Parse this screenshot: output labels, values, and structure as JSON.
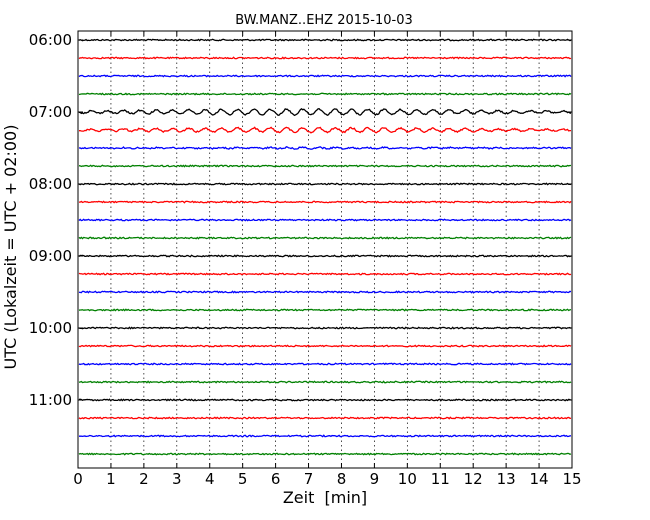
{
  "chart_data": {
    "type": "line",
    "title": "BW.MANZ..EHZ 2015-10-03",
    "xlabel": "Zeit  [min]",
    "ylabel": "UTC (Lokalzeit = UTC + 02:00)",
    "xlim": [
      0,
      15
    ],
    "x_ticks": [
      0,
      1,
      2,
      3,
      4,
      5,
      6,
      7,
      8,
      9,
      10,
      11,
      12,
      13,
      14,
      15
    ],
    "x_tick_labels": [
      "0",
      "1",
      "2",
      "3",
      "4",
      "5",
      "6",
      "7",
      "8",
      "9",
      "10",
      "11",
      "12",
      "13",
      "14",
      "15"
    ],
    "y_tick_labels": [
      "06:00",
      "07:00",
      "08:00",
      "09:00",
      "10:00",
      "11:00"
    ],
    "grid": "vertical dotted",
    "trace_colors": [
      "#000000",
      "#ff0000",
      "#0000ff",
      "#008000"
    ],
    "traces": [
      {
        "start": "06:00",
        "amp": 1.0
      },
      {
        "start": "06:15",
        "amp": 1.0
      },
      {
        "start": "06:30",
        "amp": 1.0
      },
      {
        "start": "06:45",
        "amp": 1.0
      },
      {
        "start": "07:00",
        "amp": 3.5
      },
      {
        "start": "07:15",
        "amp": 3.0
      },
      {
        "start": "07:30",
        "amp": 1.5
      },
      {
        "start": "07:45",
        "amp": 1.0
      },
      {
        "start": "08:00",
        "amp": 1.0
      },
      {
        "start": "08:15",
        "amp": 1.0
      },
      {
        "start": "08:30",
        "amp": 1.0
      },
      {
        "start": "08:45",
        "amp": 1.0
      },
      {
        "start": "09:00",
        "amp": 1.0
      },
      {
        "start": "09:15",
        "amp": 1.0
      },
      {
        "start": "09:30",
        "amp": 1.0
      },
      {
        "start": "09:45",
        "amp": 1.0
      },
      {
        "start": "10:00",
        "amp": 1.0
      },
      {
        "start": "10:15",
        "amp": 1.0
      },
      {
        "start": "10:30",
        "amp": 1.0
      },
      {
        "start": "10:45",
        "amp": 1.0
      },
      {
        "start": "11:00",
        "amp": 1.0
      },
      {
        "start": "11:15",
        "amp": 1.0
      },
      {
        "start": "11:30",
        "amp": 1.0
      },
      {
        "start": "11:45",
        "amp": 1.0
      }
    ]
  }
}
